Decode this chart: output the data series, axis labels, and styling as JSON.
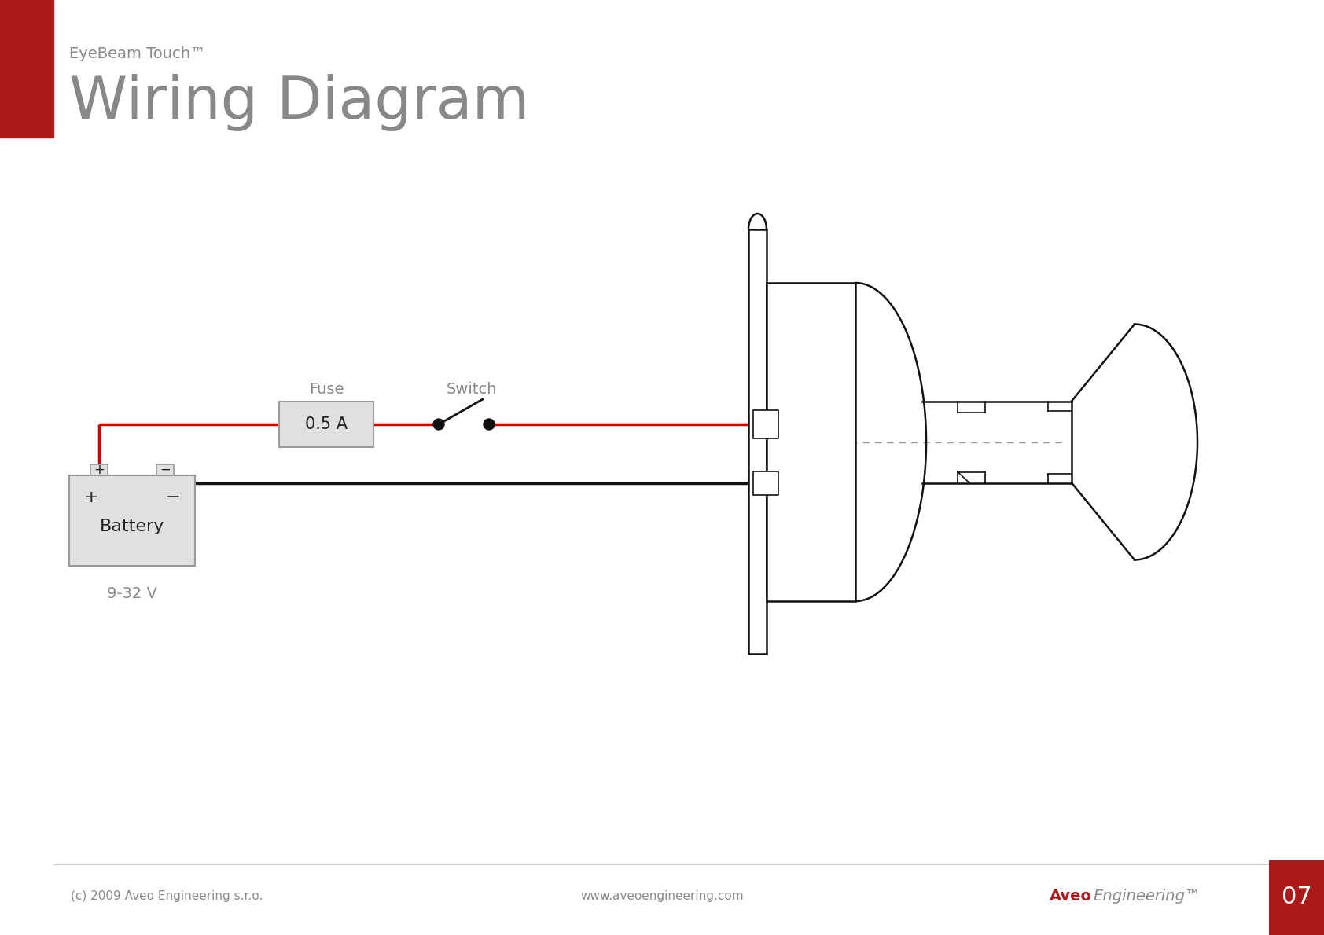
{
  "title_small": "EyeBeam Touch™",
  "title_large": "Wiring Diagram",
  "gray_text": "#888888",
  "wire_red": "#cc0000",
  "wire_black": "#111111",
  "bg_color": "#ffffff",
  "sidebar_color": "#aa1a1a",
  "fuse_label": "Fuse",
  "fuse_value": "0.5 A",
  "switch_label": "Switch",
  "battery_label": "Battery",
  "battery_voltage": "9-32 V",
  "footer_left": "(c) 2009 Aveo Engineering s.r.o.",
  "footer_center": "www.aveoengineering.com",
  "footer_right_aveo": "Aveo",
  "footer_right_eng": "Engineering™",
  "page_number": "07",
  "box_fill": "#e0e0e0",
  "box_edge": "#999999",
  "fixture_edge": "#111111"
}
